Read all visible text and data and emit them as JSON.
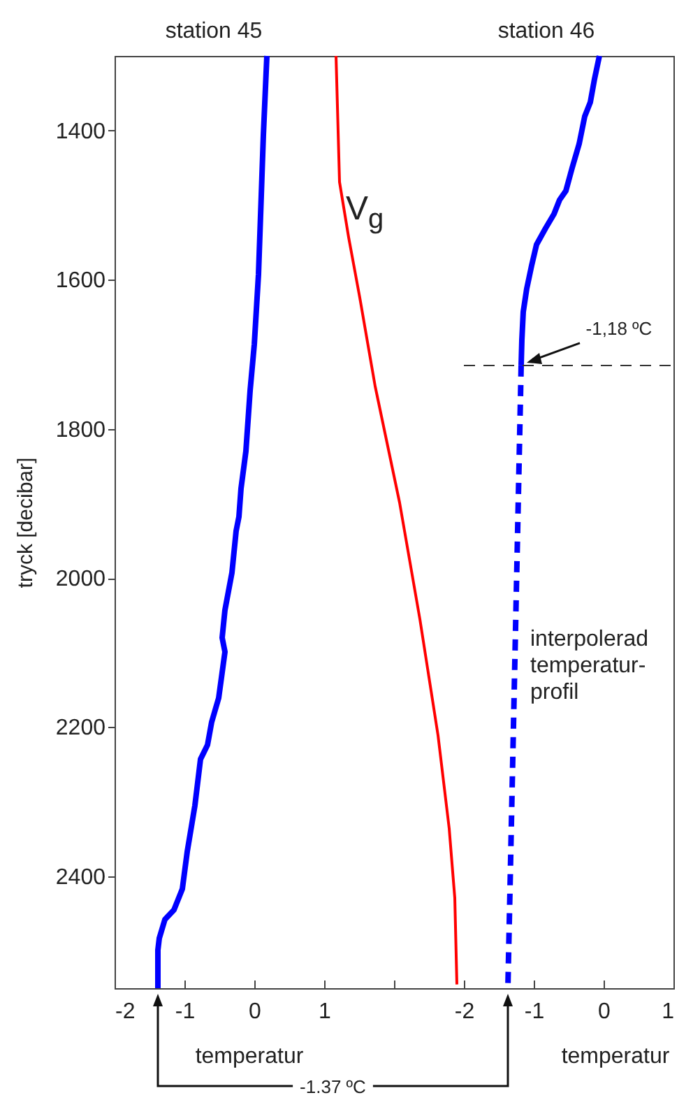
{
  "chart_data": {
    "type": "line",
    "xlabel": "temperatur",
    "x2label": "temperatur",
    "ylabel": "tryck [decibar]",
    "xlim": [
      -2,
      6
    ],
    "xticks": [
      -2,
      -1,
      0,
      1,
      {
        "value": 2,
        "label": null
      }
    ],
    "x2lim": [
      -7,
      1
    ],
    "x2ticks": [
      -2,
      -1,
      0,
      1
    ],
    "ylim": [
      2550,
      1300
    ],
    "yticks": [
      1400,
      1600,
      1800,
      2000,
      2200,
      2400
    ],
    "marker": "none",
    "series": [
      {
        "name": "station 45",
        "color": "#0000ff",
        "line_style": "solid",
        "x": [
          0.18,
          0.13,
          0.1,
          0.06,
          0.0,
          -0.06,
          -0.12,
          -0.19,
          -0.22,
          -0.26,
          -0.32,
          -0.42,
          -0.46,
          -0.42,
          -0.51,
          -0.61,
          -0.67,
          -0.77,
          -0.85,
          -0.96,
          -1.03,
          -1.15,
          -1.28,
          -1.36,
          -1.38,
          -1.38
        ],
        "values": [
          1300,
          1406,
          1487,
          1593,
          1687,
          1749,
          1830,
          1880,
          1918,
          1937,
          1993,
          2043,
          2080,
          2099,
          2161,
          2193,
          2224,
          2243,
          2305,
          2367,
          2417,
          2445,
          2458,
          2483,
          2499,
          2550
        ]
      },
      {
        "name": "V$_{g}$",
        "color": "#ff0000",
        "line_style": "solid",
        "x": [
          1.17,
          1.22,
          1.35,
          1.51,
          1.73,
          2.08,
          2.37,
          2.63,
          2.79,
          2.87,
          2.9
        ],
        "values": [
          1300,
          1469,
          1543,
          1624,
          1743,
          1899,
          2055,
          2211,
          2336,
          2429,
          2545
        ]
      },
      {
        "name": "station 46",
        "color": "#0000ff",
        "axis": "x2",
        "line_style": "solid",
        "x": [
          -0.06,
          -0.13,
          -0.19,
          -0.27,
          -0.35,
          -0.45,
          -0.54,
          -0.63,
          -0.71,
          -0.83,
          -0.96,
          -1.03,
          -1.1,
          -1.15,
          -1.17,
          -1.18
        ],
        "values": [
          1300,
          1331,
          1362,
          1381,
          1418,
          1450,
          1481,
          1493,
          1512,
          1531,
          1553,
          1581,
          1612,
          1643,
          1681,
          1715
        ]
      },
      {
        "name": "interpolerad temperatur-profil",
        "color": "#0000ff",
        "axis": "x2",
        "line_style": "dashed",
        "x": [
          -1.18,
          -1.37
        ],
        "values": [
          1715,
          2550
        ]
      }
    ],
    "ref_lines": [
      {
        "axis": "y",
        "value": 1715,
        "label": null,
        "color": "#333333",
        "line_style": "dashed"
      }
    ],
    "annotations": [
      "-1,18 ºC",
      "-1.37 ºC"
    ]
  }
}
